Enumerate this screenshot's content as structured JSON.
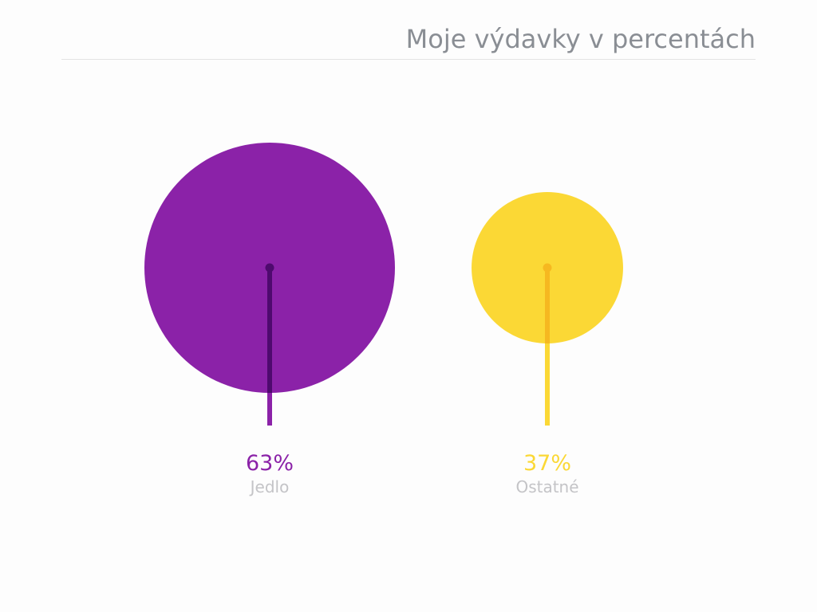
{
  "chart_data": {
    "type": "bubble",
    "title": "Moje výdavky v percentách",
    "unit": "%",
    "items": [
      {
        "label": "Jedlo",
        "value": 63,
        "color": "#8b22a8",
        "stem_color": "#4e0a6e",
        "pct_text": "63%"
      },
      {
        "label": "Ostatné",
        "value": 37,
        "color": "#fbd835",
        "stem_color": "#f6b820",
        "pct_text": "37%"
      }
    ]
  }
}
